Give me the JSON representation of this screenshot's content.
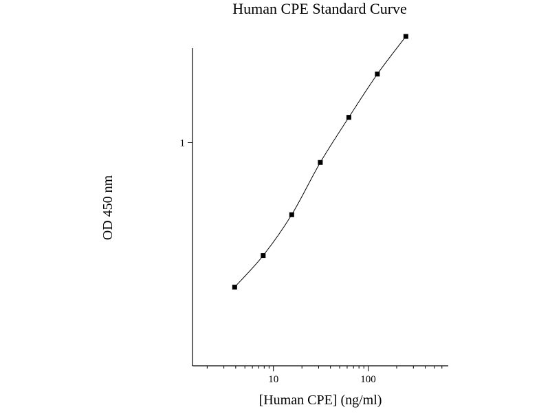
{
  "chart_data": {
    "type": "line",
    "title": "Human CPE Standard Curve",
    "xlabel": "[Human CPE] (ng/ml)",
    "ylabel": "OD 450 nm",
    "x_scale": "log",
    "y_scale": "log",
    "xlim": [
      1.4,
      700
    ],
    "ylim": [
      0.14,
      2.3
    ],
    "x_tick_labels": [
      {
        "value": 10,
        "label": "10"
      },
      {
        "value": 100,
        "label": "100"
      }
    ],
    "x_minor_ticks": [
      2,
      3,
      4,
      5,
      6,
      7,
      8,
      9,
      20,
      30,
      40,
      50,
      60,
      70,
      80,
      90,
      200,
      300,
      400,
      500,
      600
    ],
    "y_tick_labels": [
      {
        "value": 1,
        "label": "1"
      }
    ],
    "grid": false,
    "legend": "none",
    "series": [
      {
        "marker": "square",
        "color": "#000000",
        "x": [
          3.9,
          7.8,
          15.6,
          31.25,
          62.5,
          125,
          250
        ],
        "y": [
          0.28,
          0.37,
          0.53,
          0.84,
          1.25,
          1.83,
          2.55
        ]
      }
    ]
  }
}
